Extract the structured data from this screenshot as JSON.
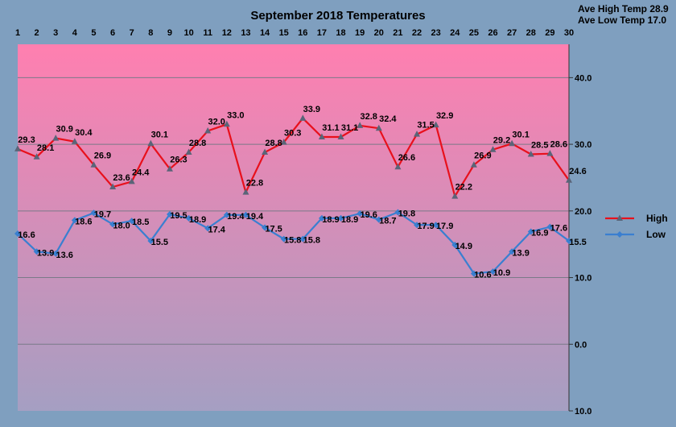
{
  "chart_data": {
    "type": "line",
    "title": "September 2018 Temperatures",
    "annotations": [
      "Ave High Temp 28.9",
      "Ave Low Temp 17.0"
    ],
    "x": [
      "1",
      "2",
      "3",
      "4",
      "5",
      "6",
      "7",
      "8",
      "9",
      "10",
      "11",
      "12",
      "13",
      "14",
      "15",
      "16",
      "17",
      "18",
      "19",
      "20",
      "21",
      "22",
      "23",
      "24",
      "25",
      "26",
      "27",
      "28",
      "29",
      "30"
    ],
    "ylim": [
      -10,
      45
    ],
    "yticks": [
      40,
      30,
      20,
      10,
      0,
      -10
    ],
    "ytick_labels": [
      "40.0",
      "30.0",
      "20.0",
      "10.0",
      "0.0",
      "10.0"
    ],
    "grid": true,
    "legend_position": "right",
    "series": [
      {
        "name": "High",
        "color": "#e8101c",
        "marker": "triangle",
        "values": [
          29.3,
          28.1,
          30.9,
          30.4,
          26.9,
          23.6,
          24.4,
          30.1,
          26.3,
          28.8,
          32.0,
          33.0,
          22.8,
          28.8,
          30.3,
          33.9,
          31.1,
          31.1,
          32.8,
          32.4,
          26.6,
          31.5,
          32.9,
          22.2,
          26.9,
          29.2,
          30.1,
          28.5,
          28.6,
          24.6
        ],
        "labels": [
          "29.3",
          "28.1",
          "30.9",
          "30.4",
          "26.9",
          "23.6",
          "24.4",
          "30.1",
          "26.3",
          "28.8",
          "32.0",
          "33.0",
          "22.8",
          "28.8",
          "30.3",
          "33.9",
          "31.1",
          "31.1",
          "32.8",
          "32.4",
          "26.6",
          "31.5",
          "32.9",
          "22.2",
          "26.9",
          "29.2",
          "30.1",
          "28.5",
          "28.6",
          "24.6"
        ]
      },
      {
        "name": "Low",
        "color": "#3a7fd0",
        "marker": "diamond",
        "values": [
          16.6,
          13.9,
          13.6,
          18.6,
          19.7,
          18.0,
          18.5,
          15.5,
          19.5,
          18.9,
          17.4,
          19.4,
          19.4,
          17.5,
          15.8,
          15.8,
          18.9,
          18.9,
          19.6,
          18.7,
          19.8,
          17.9,
          17.9,
          14.9,
          10.6,
          10.9,
          13.9,
          16.9,
          17.6,
          15.5
        ],
        "labels": [
          "16.6",
          "13.9",
          "13.6",
          "18.6",
          "19.7",
          "18.0",
          "18.5",
          "15.5",
          "19.5",
          "18.9",
          "17.4",
          "19.4",
          "19.4",
          "17.5",
          "15.8",
          "15.8",
          "18.9",
          "18.9",
          "19.6",
          "18.7",
          "19.8",
          "17.9",
          "17.9",
          "14.9",
          "10.6",
          "10.9",
          "13.9",
          "16.9",
          "17.6",
          "15.5"
        ]
      }
    ],
    "colors": {
      "page_background": "#7f9fbf",
      "plot_top": "#ff7fb0",
      "plot_bottom": "#a59fc2",
      "gridline": "#7a7a88",
      "negative_tick": "#e8101c"
    }
  }
}
